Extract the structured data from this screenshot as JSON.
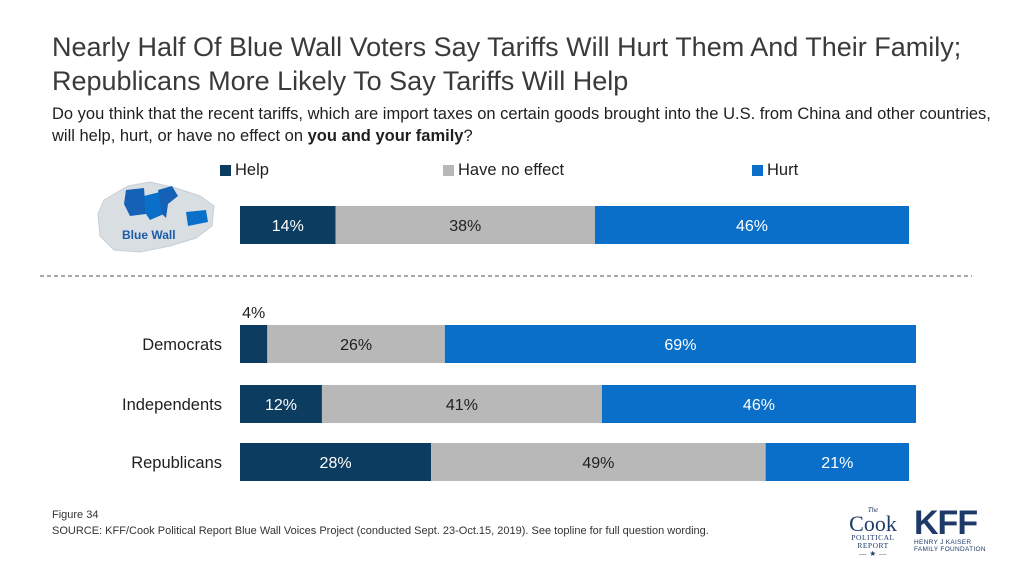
{
  "title": "Nearly Half Of Blue Wall Voters Say Tariffs Will Hurt Them And Their Family; Republicans More Likely To Say Tariffs Will Help",
  "subtitle_pre": "Do you think that the recent tariffs, which are import taxes on certain goods brought into the U.S. from China and other countries, will help, hurt, or have no effect on ",
  "subtitle_bold": "you and your family",
  "subtitle_post": "?",
  "map_label": "Blue Wall",
  "chart_data": {
    "type": "bar",
    "orientation": "horizontal",
    "stacked": true,
    "unit": "%",
    "legend_position": "top",
    "categories": [
      "Blue Wall",
      "Democrats",
      "Independents",
      "Republicans"
    ],
    "series": [
      {
        "name": "Help",
        "color": "#0c3c60",
        "values": [
          14,
          4,
          12,
          28
        ]
      },
      {
        "name": "Have no effect",
        "color": "#b8b8b8",
        "values": [
          38,
          26,
          41,
          49
        ]
      },
      {
        "name": "Hurt",
        "color": "#0a6fc9",
        "values": [
          46,
          69,
          46,
          21
        ]
      }
    ]
  },
  "footer": {
    "figure": "Figure 34",
    "source": "SOURCE: KFF/Cook Political Report Blue Wall Voices Project (conducted Sept. 23-Oct.15, 2019). See topline for full question wording."
  },
  "logos": {
    "cook_the": "The",
    "cook_name": "Cook",
    "cook_line1": "POLITICAL",
    "cook_line2": "REPORT",
    "kff_name": "KFF",
    "kff_line1": "HENRY J KAISER",
    "kff_line2": "FAMILY FOUNDATION"
  }
}
